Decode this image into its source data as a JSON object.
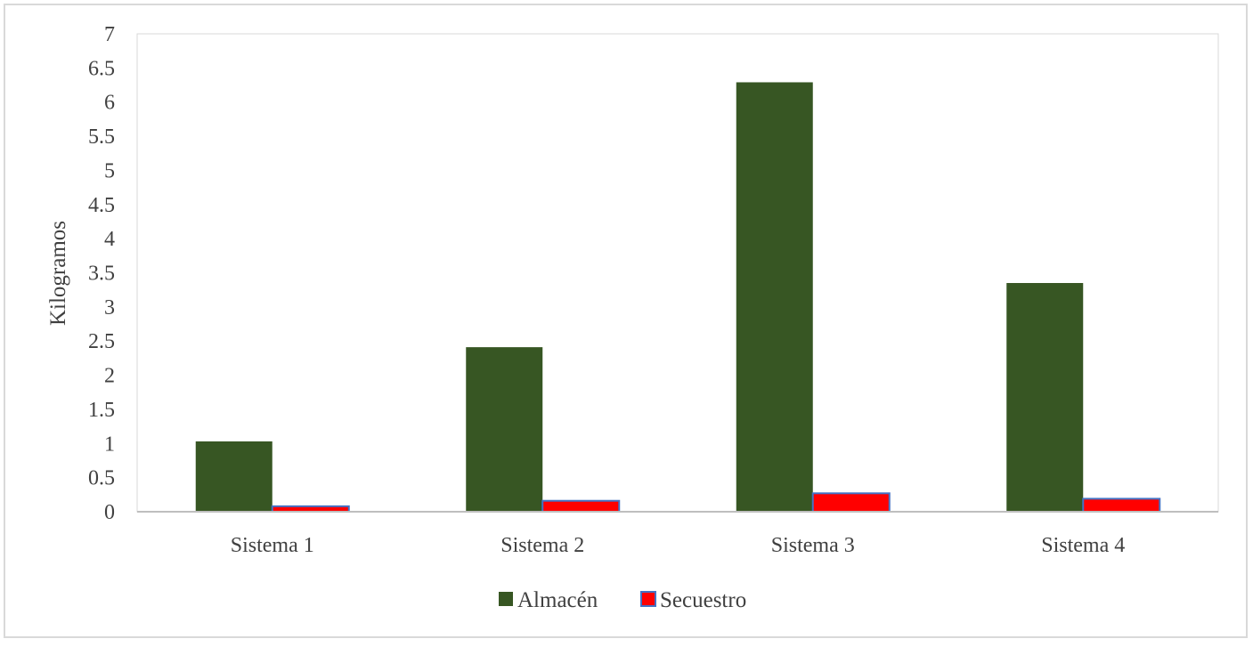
{
  "chart_data": {
    "type": "bar",
    "title": "",
    "xlabel": "",
    "ylabel": "Kilogramos",
    "ylim": [
      0,
      7
    ],
    "yticks": [
      "0",
      "0.5",
      "1",
      "1.5",
      "2",
      "2.5",
      "3",
      "3.5",
      "4",
      "4.5",
      "5",
      "5.5",
      "6",
      "6.5",
      "7"
    ],
    "grid": false,
    "legend_position": "bottom-center",
    "categories": [
      "Sistema 1",
      "Sistema 2",
      "Sistema 3",
      "Sistema 4"
    ],
    "series": [
      {
        "name": "Almacén",
        "color": "#375623",
        "values": [
          1.03,
          2.41,
          6.29,
          3.35
        ]
      },
      {
        "name": "Secuestro",
        "color": "#ff0000",
        "border": "#4472c4",
        "values": [
          0.08,
          0.16,
          0.27,
          0.19
        ]
      }
    ]
  }
}
